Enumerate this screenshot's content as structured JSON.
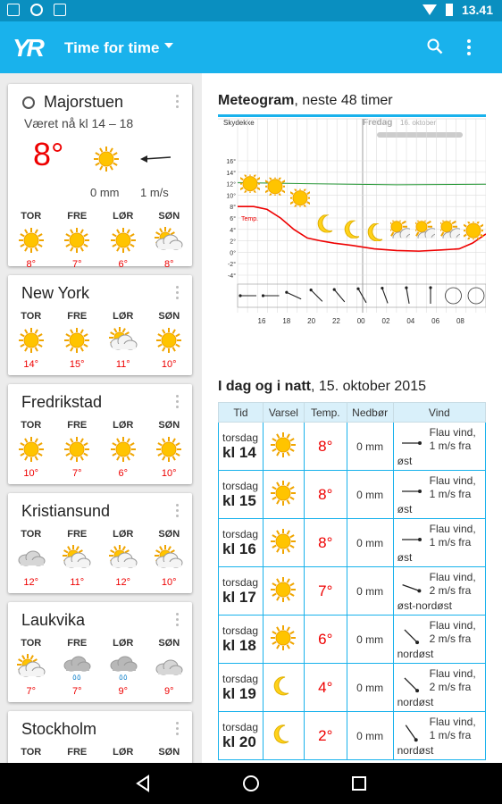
{
  "status": {
    "time": "13.41"
  },
  "appbar": {
    "logo": "YR",
    "title": "Time for time"
  },
  "locations": [
    {
      "name": "Majorstuen",
      "subtitle": "Været nå kl 14 – 18",
      "now": {
        "temp": "8°",
        "rain": "0 mm",
        "wind": "1 m/s"
      },
      "days": [
        {
          "label": "TOR",
          "icon": "sun-icon",
          "temp": "8°"
        },
        {
          "label": "FRE",
          "icon": "sun-icon",
          "temp": "7°"
        },
        {
          "label": "LØR",
          "icon": "sun-icon",
          "temp": "6°"
        },
        {
          "label": "SØN",
          "icon": "partly-cloudy-icon",
          "temp": "8°"
        }
      ]
    },
    {
      "name": "New York",
      "days": [
        {
          "label": "TOR",
          "icon": "sun-icon",
          "temp": "14°"
        },
        {
          "label": "FRE",
          "icon": "sun-icon",
          "temp": "15°"
        },
        {
          "label": "LØR",
          "icon": "partly-cloudy-icon",
          "temp": "11°"
        },
        {
          "label": "SØN",
          "icon": "sun-icon",
          "temp": "10°"
        }
      ]
    },
    {
      "name": "Fredrikstad",
      "days": [
        {
          "label": "TOR",
          "icon": "sun-icon",
          "temp": "10°"
        },
        {
          "label": "FRE",
          "icon": "sun-icon",
          "temp": "7°"
        },
        {
          "label": "LØR",
          "icon": "sun-icon",
          "temp": "6°"
        },
        {
          "label": "SØN",
          "icon": "sun-icon",
          "temp": "10°"
        }
      ]
    },
    {
      "name": "Kristiansund",
      "days": [
        {
          "label": "TOR",
          "icon": "cloud-icon",
          "temp": "12°"
        },
        {
          "label": "FRE",
          "icon": "partly-cloudy-icon",
          "temp": "11°"
        },
        {
          "label": "LØR",
          "icon": "partly-cloudy-icon",
          "temp": "12°"
        },
        {
          "label": "SØN",
          "icon": "partly-cloudy-icon",
          "temp": "10°"
        }
      ]
    },
    {
      "name": "Laukvika",
      "days": [
        {
          "label": "TOR",
          "icon": "partly-cloudy-icon",
          "temp": "7°"
        },
        {
          "label": "FRE",
          "icon": "rain-cloud-icon",
          "temp": "7°"
        },
        {
          "label": "LØR",
          "icon": "rain-cloud-icon",
          "temp": "9°"
        },
        {
          "label": "SØN",
          "icon": "cloud-icon",
          "temp": "9°"
        }
      ]
    },
    {
      "name": "Stockholm",
      "days": [
        {
          "label": "TOR"
        },
        {
          "label": "FRE"
        },
        {
          "label": "LØR"
        },
        {
          "label": "SØN"
        }
      ]
    }
  ],
  "meteogram": {
    "title_bold": "Meteogram",
    "title_rest": ", neste 48 timer",
    "cloud_label": "Skydekke",
    "day_label": "Fredag",
    "date_label": "16. oktober",
    "temp_label": "Temp.",
    "y_ticks": [
      "16°",
      "14°",
      "12°",
      "10°",
      "8°",
      "6°",
      "4°",
      "2°",
      "0°",
      "-2°",
      "-4°"
    ],
    "x_ticks": [
      "16",
      "18",
      "20",
      "22",
      "00",
      "02",
      "04",
      "06",
      "08"
    ]
  },
  "today": {
    "title_bold": "I dag og i natt",
    "title_rest": ", 15. oktober 2015",
    "headers": [
      "Tid",
      "Varsel",
      "Temp.",
      "Nedbør",
      "Vind"
    ],
    "rows": [
      {
        "day": "torsdag",
        "hour": "kl 14",
        "icon": "sun-icon",
        "temp": "8°",
        "rain": "0 mm",
        "wind": "Flau vind,",
        "speed": "1 m/s fra",
        "dir": "øst",
        "angle": 180
      },
      {
        "day": "torsdag",
        "hour": "kl 15",
        "icon": "sun-icon",
        "temp": "8°",
        "rain": "0 mm",
        "wind": "Flau vind,",
        "speed": "1 m/s fra",
        "dir": "øst",
        "angle": 180
      },
      {
        "day": "torsdag",
        "hour": "kl 16",
        "icon": "sun-icon",
        "temp": "8°",
        "rain": "0 mm",
        "wind": "Flau vind,",
        "speed": "1 m/s fra",
        "dir": "øst",
        "angle": 180
      },
      {
        "day": "torsdag",
        "hour": "kl 17",
        "icon": "sun-icon",
        "temp": "7°",
        "rain": "0 mm",
        "wind": "Flau vind,",
        "speed": "2 m/s fra",
        "dir": "øst-nordøst",
        "angle": 200
      },
      {
        "day": "torsdag",
        "hour": "kl 18",
        "icon": "sun-icon",
        "temp": "6°",
        "rain": "0 mm",
        "wind": "Flau vind,",
        "speed": "2 m/s fra",
        "dir": "nordøst",
        "angle": 225
      },
      {
        "day": "torsdag",
        "hour": "kl 19",
        "icon": "moon-icon",
        "temp": "4°",
        "rain": "0 mm",
        "wind": "Flau vind,",
        "speed": "2 m/s fra",
        "dir": "nordøst",
        "angle": 225
      },
      {
        "day": "torsdag",
        "hour": "kl 20",
        "icon": "moon-icon",
        "temp": "2°",
        "rain": "0 mm",
        "wind": "Flau vind,",
        "speed": "1 m/s fra",
        "dir": "nordøst",
        "angle": 235
      }
    ]
  }
}
